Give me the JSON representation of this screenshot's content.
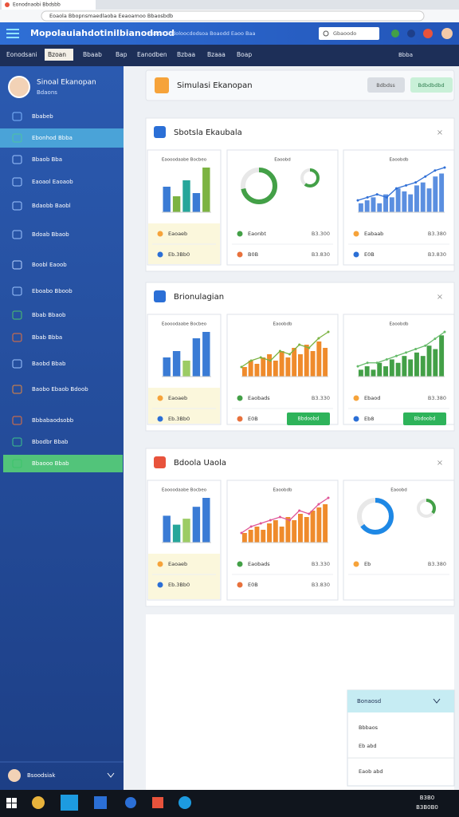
{
  "browser": {
    "tab": "Eonodnaobi Bbdsbb",
    "url": "Eoaola Bbopnsmaedlaoba Eeaoamoo Bbaosbdb"
  },
  "header": {
    "title": "Mopolauiahdotinilbianodmod",
    "subtitle": "Bsaoa Sbdoloocdodsoa Boaodd Eaoo Baa",
    "search": "Gbaoodo"
  },
  "nav": {
    "items": [
      "Eonodsani",
      "Bzoan",
      "Bbaab",
      "Bap",
      "Eanodben",
      "Bzbaa",
      "Bzaaa",
      "Boap"
    ],
    "right": "Bbba"
  },
  "sidebar": {
    "user": "Sinoal Ekanopan",
    "role": "Bdaons",
    "items": [
      "Bbabeb",
      "Ebonhod Bbba",
      "Bbaob Bba",
      "Eaoaol Eaoaob",
      "Bdaobb Baobl",
      "Bdoab Bbaob",
      "Boobl Eaoob",
      "Eboabo Bboob",
      "Bbab Bbaob",
      "Bbab Bbba",
      "Baobd Bbab",
      "Baobo Ebaob Bdoob",
      "Bbbabaodsobb",
      "Bbodbr Bbab",
      "Bbaooo Bbab"
    ],
    "footer": "Bsoodsiak"
  },
  "page": {
    "title": "Simulasi Ekanopan",
    "buttons": [
      "Bdbdss",
      "Bdbdbdbd"
    ]
  },
  "sections": [
    {
      "title": "Sbotsla Ekaubala",
      "panels": [
        {
          "type": "bar",
          "caption": "Eaooodaabe Bocbeo",
          "values": [
            8,
            5,
            10,
            6,
            14
          ],
          "colors": [
            "#3a7bd5",
            "#7cb342",
            "#26a69a",
            "#3a7bd5",
            "#7cb342"
          ],
          "rows": [
            {
              "label": "Eaoaeb"
            },
            {
              "label": "Eb.3Bb0"
            }
          ]
        },
        {
          "type": "donut",
          "caption": "Eaoobd",
          "value": 72,
          "color": "#43a047",
          "value2": 60,
          "color2": "#43a047",
          "rows": [
            {
              "label": "Eaonbt",
              "value": "B3.300"
            },
            {
              "label": "B0B",
              "value": "B3.830"
            }
          ]
        },
        {
          "type": "line-bar",
          "caption": "Eaoobdb",
          "values": [
            3,
            4,
            5,
            3,
            6,
            5,
            8,
            7,
            6,
            9,
            10,
            8,
            12,
            13
          ],
          "line": [
            4,
            5,
            6,
            5,
            8,
            9,
            10,
            12,
            14,
            15
          ],
          "color": "#5b8fe0",
          "line_color": "#2f6fd6",
          "rows": [
            {
              "label": "Eabaab",
              "value": "B3.380"
            },
            {
              "label": "E0B",
              "value": "B3.830"
            }
          ]
        }
      ]
    },
    {
      "title": "Brionulagian",
      "panels": [
        {
          "type": "bar",
          "caption": "Eaooodaabe Bocbeo",
          "values": [
            6,
            8,
            5,
            12,
            14
          ],
          "colors": [
            "#3a7bd5",
            "#3a7bd5",
            "#9ccc65",
            "#3a7bd5",
            "#3a7bd5"
          ],
          "rows": [
            {
              "label": "Eaoaeb"
            },
            {
              "label": "Eb.3Bb0"
            }
          ]
        },
        {
          "type": "line-bar",
          "caption": "Eaoobdb",
          "values": [
            3,
            5,
            4,
            6,
            7,
            5,
            8,
            6,
            9,
            7,
            10,
            8,
            11,
            9
          ],
          "line": [
            3,
            5,
            6,
            5,
            8,
            7,
            10,
            9,
            12,
            14
          ],
          "color": "#ef8b2c",
          "line_color": "#7cb342",
          "rows": [
            {
              "label": "Eaobads",
              "value": "B3.330"
            },
            {
              "label": "E0B",
              "button": "Bbdoobd"
            }
          ]
        },
        {
          "type": "line-bar",
          "caption": "Eaoobdb",
          "values": [
            2,
            3,
            2,
            4,
            3,
            5,
            4,
            6,
            5,
            7,
            6,
            9,
            8,
            12
          ],
          "line": [
            3,
            4,
            4,
            5,
            6,
            7,
            8,
            9,
            11,
            13
          ],
          "color": "#43a047",
          "line_color": "#66bb6a",
          "rows": [
            {
              "label": "Ebaod",
              "value": "B3.380"
            },
            {
              "label": "Eb8",
              "button": "Bbdoobd"
            }
          ]
        }
      ]
    },
    {
      "title": "Bdoola Uaola",
      "panels": [
        {
          "type": "bar",
          "caption": "Eaooodaabe Bocbeo",
          "values": [
            9,
            6,
            8,
            12,
            15
          ],
          "colors": [
            "#3a7bd5",
            "#26a69a",
            "#9ccc65",
            "#3a7bd5",
            "#3a7bd5"
          ],
          "rows": [
            {
              "label": "Eaoaeb"
            },
            {
              "label": "Eb.3Bb0"
            }
          ]
        },
        {
          "type": "line-bar",
          "caption": "Eaoobdb",
          "values": [
            3,
            4,
            5,
            4,
            6,
            7,
            5,
            8,
            7,
            9,
            8,
            10,
            11,
            12
          ],
          "line": [
            3,
            5,
            6,
            7,
            8,
            7,
            10,
            9,
            12,
            14
          ],
          "color": "#ef8b2c",
          "line_color": "#e05597",
          "rows": [
            {
              "label": "Eaobads",
              "value": "B3.330"
            },
            {
              "label": "E0B",
              "value": "B3.830"
            }
          ]
        },
        {
          "type": "donut",
          "caption": "Eaoobd",
          "value": 65,
          "color": "#1e88e5",
          "value2": 35,
          "color2": "#43a047",
          "rows": [
            {
              "label": "Eb",
              "value": "B3.380"
            }
          ]
        }
      ]
    }
  ],
  "popup": {
    "title": "Bonaosd",
    "items": [
      "Bbbaos",
      "Eb abd",
      "Eaob abd"
    ]
  },
  "taskbar": {
    "time": "B3B0",
    "date": "B3B0B0"
  }
}
